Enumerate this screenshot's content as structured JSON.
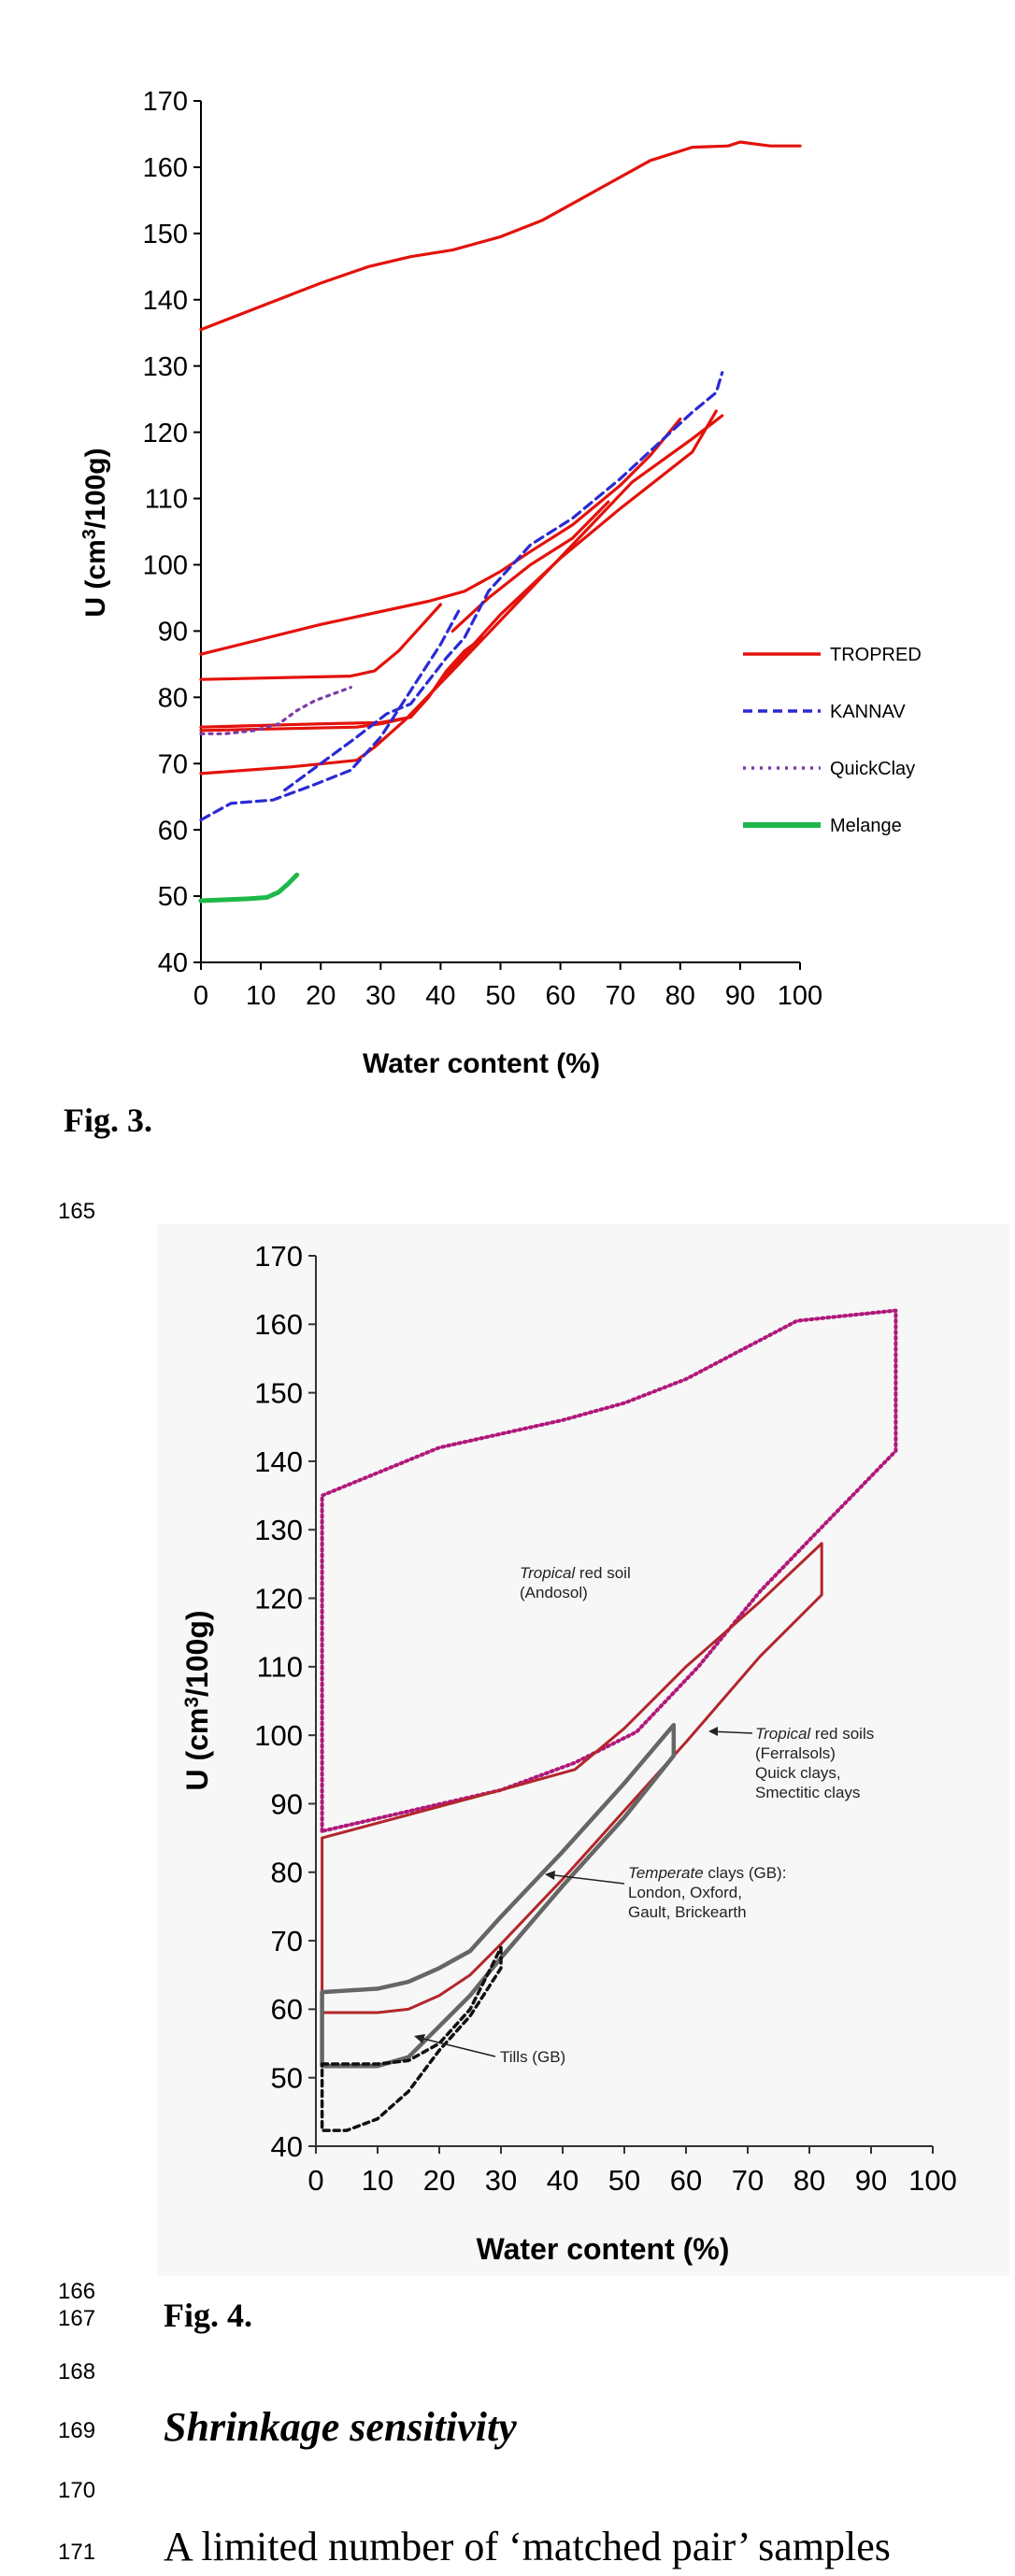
{
  "figures": [
    {
      "caption": "Fig. 3.",
      "chart_data": {
        "type": "line",
        "xlabel": "Water content (%)",
        "ylabel": "U (cm3/100g)",
        "ylabel_parts": {
          "base": "U (cm",
          "sup": "3",
          "rest": "/100g)"
        },
        "xlim": [
          0,
          100
        ],
        "ylim": [
          40,
          170
        ],
        "xticks": [
          0,
          10,
          20,
          30,
          40,
          50,
          60,
          70,
          80,
          90,
          100
        ],
        "yticks": [
          40,
          50,
          60,
          70,
          80,
          90,
          100,
          110,
          120,
          130,
          140,
          150,
          160,
          170
        ],
        "legend_position": "right",
        "series": [
          {
            "name": "TROPRED",
            "color": "#e3120b",
            "dash": "solid",
            "lines": [
              [
                [
                  0,
                  135.5
                ],
                [
                  10,
                  139
                ],
                [
                  20,
                  142.5
                ],
                [
                  28,
                  145
                ],
                [
                  35,
                  146.5
                ],
                [
                  42,
                  147.5
                ],
                [
                  50,
                  149.5
                ],
                [
                  57,
                  152
                ],
                [
                  65,
                  156
                ],
                [
                  75,
                  161
                ],
                [
                  82,
                  163
                ],
                [
                  88,
                  163.2
                ],
                [
                  90,
                  163.8
                ],
                [
                  95,
                  163.2
                ],
                [
                  100,
                  163.2
                ]
              ],
              [
                [
                  0,
                  86.5
                ],
                [
                  20,
                  91
                ],
                [
                  38,
                  94.5
                ],
                [
                  44,
                  96
                ],
                [
                  50,
                  99
                ],
                [
                  55,
                  102
                ],
                [
                  62,
                  106
                ],
                [
                  70,
                  112
                ],
                [
                  75,
                  116.5
                ],
                [
                  80,
                  122
                ]
              ],
              [
                [
                  0,
                  82.7
                ],
                [
                  25,
                  83.2
                ],
                [
                  29,
                  84
                ],
                [
                  33,
                  87
                ],
                [
                  37,
                  91
                ],
                [
                  40,
                  94
                ]
              ],
              [
                [
                  0,
                  75.5
                ],
                [
                  20,
                  76
                ],
                [
                  30,
                  76.2
                ],
                [
                  35,
                  77
                ],
                [
                  38,
                  80
                ],
                [
                  41,
                  84
                ],
                [
                  44,
                  87
                ],
                [
                  47,
                  89
                ]
              ],
              [
                [
                  0,
                  75
                ],
                [
                  26,
                  75.5
                ],
                [
                  30,
                  76
                ],
                [
                  35,
                  77
                ],
                [
                  42,
                  84.5
                ],
                [
                  50,
                  92.5
                ],
                [
                  60,
                  101
                ],
                [
                  70,
                  108.5
                ],
                [
                  82,
                  117
                ],
                [
                  86,
                  123.2
                ]
              ],
              [
                [
                  0,
                  68.5
                ],
                [
                  15,
                  69.5
                ],
                [
                  26,
                  70.5
                ],
                [
                  29,
                  72.5
                ],
                [
                  34,
                  76.5
                ],
                [
                  42,
                  84
                ],
                [
                  52,
                  93.5
                ],
                [
                  62,
                  103
                ],
                [
                  72,
                  112.5
                ],
                [
                  82,
                  119
                ],
                [
                  87,
                  122.5
                ]
              ],
              [
                [
                  42,
                  90
                ],
                [
                  48,
                  95
                ],
                [
                  55,
                  100
                ],
                [
                  62,
                  104
                ],
                [
                  68,
                  109.5
                ]
              ]
            ]
          },
          {
            "name": "KANNAV",
            "color": "#2a2ad4",
            "dash": "10,6",
            "lines": [
              [
                [
                  0,
                  61.5
                ],
                [
                  5,
                  64
                ],
                [
                  12,
                  64.5
                ],
                [
                  18,
                  66.5
                ],
                [
                  25,
                  69
                ],
                [
                  30,
                  74
                ],
                [
                  35,
                  81
                ],
                [
                  40,
                  88
                ],
                [
                  43,
                  93
                ]
              ],
              [
                [
                  14,
                  66
                ],
                [
                  20,
                  70
                ],
                [
                  26,
                  74
                ],
                [
                  31,
                  77.5
                ],
                [
                  35,
                  79
                ],
                [
                  38,
                  82.5
                ],
                [
                  41,
                  86
                ],
                [
                  44,
                  89
                ],
                [
                  48,
                  96
                ],
                [
                  55,
                  103
                ],
                [
                  62,
                  107
                ],
                [
                  70,
                  113
                ],
                [
                  76,
                  118
                ],
                [
                  82,
                  123
                ],
                [
                  86,
                  126
                ],
                [
                  87,
                  129
                ]
              ]
            ]
          },
          {
            "name": "QuickClay",
            "color": "#7a3aa8",
            "dash": "3,6",
            "lines": [
              [
                [
                  0,
                  74.5
                ],
                [
                  4,
                  74.5
                ],
                [
                  9,
                  75
                ],
                [
                  13,
                  76
                ],
                [
                  16,
                  78
                ],
                [
                  19,
                  79.5
                ],
                [
                  22,
                  80.5
                ],
                [
                  25,
                  81.5
                ]
              ]
            ]
          },
          {
            "name": "Melange",
            "color": "#1eb84a",
            "dash": "solid",
            "lines": [
              [
                [
                  0,
                  49.3
                ],
                [
                  8,
                  49.6
                ],
                [
                  11,
                  49.8
                ],
                [
                  13,
                  50.6
                ],
                [
                  14.5,
                  51.8
                ],
                [
                  16,
                  53.2
                ]
              ]
            ]
          }
        ]
      }
    },
    {
      "caption": "Fig. 4.",
      "chart_data": {
        "type": "line",
        "xlabel": "Water content (%)",
        "ylabel": "U (cm3/100g)",
        "ylabel_parts": {
          "base": "U (cm",
          "sup": "3",
          "rest": "/100g)"
        },
        "xlim": [
          0,
          100
        ],
        "ylim": [
          40,
          170
        ],
        "xticks": [
          0,
          10,
          20,
          30,
          40,
          50,
          60,
          70,
          80,
          90,
          100
        ],
        "yticks": [
          40,
          50,
          60,
          70,
          80,
          90,
          100,
          110,
          120,
          130,
          140,
          150,
          160,
          170
        ],
        "series": [
          {
            "color": "#b0187a",
            "dash": "2,4",
            "closed": true,
            "points": [
              [
                1,
                86
              ],
              [
                1,
                135
              ],
              [
                20,
                142
              ],
              [
                40,
                146
              ],
              [
                50,
                148.5
              ],
              [
                60,
                152
              ],
              [
                78,
                160.5
              ],
              [
                94,
                162
              ],
              [
                94,
                141.5
              ],
              [
                80,
                128.5
              ],
              [
                72,
                121
              ],
              [
                62,
                110
              ],
              [
                52,
                100.5
              ],
              [
                42,
                96
              ],
              [
                30,
                92
              ],
              [
                1,
                86
              ]
            ]
          },
          {
            "color": "#b3262b",
            "dash": "solid",
            "closed": true,
            "points": [
              [
                1,
                85
              ],
              [
                30,
                92
              ],
              [
                42,
                95
              ],
              [
                50,
                101
              ],
              [
                60,
                110
              ],
              [
                72,
                119.5
              ],
              [
                82,
                128
              ],
              [
                82,
                120.5
              ],
              [
                72,
                111.5
              ],
              [
                60,
                99
              ],
              [
                58,
                97
              ],
              [
                50,
                89
              ],
              [
                40,
                79
              ],
              [
                30,
                69.5
              ],
              [
                25,
                65
              ],
              [
                20,
                62
              ],
              [
                15,
                60
              ],
              [
                10,
                59.5
              ],
              [
                1,
                59.5
              ],
              [
                1,
                85
              ]
            ]
          },
          {
            "color": "#666666",
            "dash": "solid",
            "closed": true,
            "points": [
              [
                1,
                62.5
              ],
              [
                10,
                63
              ],
              [
                15,
                64
              ],
              [
                20,
                66
              ],
              [
                25,
                68.5
              ],
              [
                30,
                73.5
              ],
              [
                40,
                83
              ],
              [
                50,
                93
              ],
              [
                58,
                101.5
              ],
              [
                58,
                97
              ],
              [
                50,
                88
              ],
              [
                40,
                78
              ],
              [
                30,
                67.5
              ],
              [
                25,
                62
              ],
              [
                20,
                57.5
              ],
              [
                15,
                53
              ],
              [
                10,
                51.7
              ],
              [
                1,
                51.7
              ],
              [
                1,
                62.5
              ]
            ]
          },
          {
            "color": "#111111",
            "dash": "6,5",
            "closed": true,
            "points": [
              [
                1,
                52
              ],
              [
                10,
                52
              ],
              [
                15,
                52.5
              ],
              [
                20,
                55
              ],
              [
                25,
                60
              ],
              [
                30,
                69
              ],
              [
                30,
                66
              ],
              [
                25,
                59
              ],
              [
                20,
                54
              ],
              [
                15,
                48
              ],
              [
                10,
                44
              ],
              [
                5,
                42.3
              ],
              [
                1,
                42.3
              ],
              [
                1,
                52
              ]
            ]
          }
        ],
        "annotations": [
          {
            "lines": [
              {
                "italic": "Tropical",
                "plain": " red soil"
              },
              {
                "italic": "",
                "plain": "(Andosol)"
              }
            ]
          },
          {
            "lines": [
              {
                "italic": "Tropical",
                "plain": " red soils"
              },
              {
                "italic": "",
                "plain": "(Ferralsols)"
              },
              {
                "italic": "",
                "plain": "Quick clays,"
              },
              {
                "italic": "",
                "plain": "Smectitic clays"
              }
            ]
          },
          {
            "lines": [
              {
                "italic": "Temperate",
                "plain": " clays (GB):"
              },
              {
                "italic": "",
                "plain": "London, Oxford,"
              },
              {
                "italic": "",
                "plain": "Gault, Brickearth"
              }
            ]
          },
          {
            "lines": [
              {
                "italic": "",
                "plain": "Tills (GB)"
              }
            ]
          }
        ]
      }
    }
  ],
  "line_numbers": [
    "165",
    "166",
    "167",
    "168",
    "169",
    "170",
    "171"
  ],
  "section_heading": "Shrinkage sensitivity",
  "body_text_partial": "A limited number of ‘matched pair’ samples"
}
